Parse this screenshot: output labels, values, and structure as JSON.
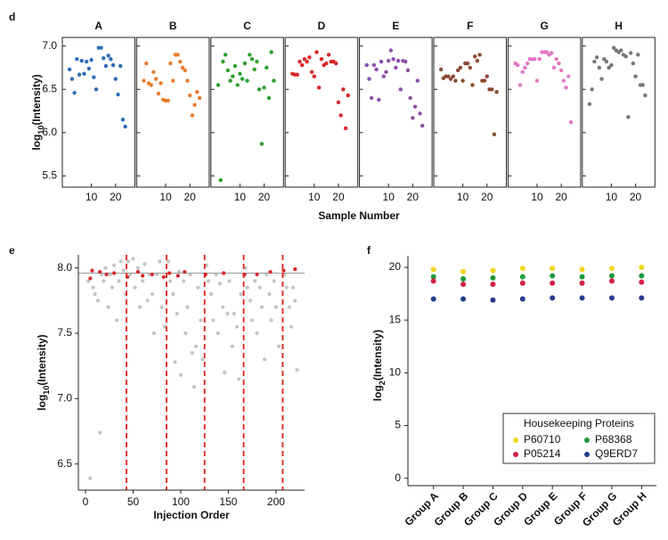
{
  "chart_data": [
    {
      "type": "scatter-grid",
      "panel_label": "d",
      "ylabel": [
        {
          "text": "log"
        },
        {
          "text": "10",
          "sub": true
        },
        {
          "text": "(Intensity)"
        }
      ],
      "xlabel": "Sample Number",
      "xlim": [
        -2,
        28
      ],
      "xticks": [
        10,
        20
      ],
      "ylim": [
        5.37,
        7.1
      ],
      "yticks": [
        {
          "value": 5.5,
          "label": "5.5"
        },
        {
          "value": 6,
          "label": "6.0"
        },
        {
          "value": 6.5,
          "label": "6.5"
        },
        {
          "value": 7,
          "label": "7.0"
        }
      ],
      "x": [
        1,
        2,
        3,
        4,
        5,
        6,
        7,
        8,
        9,
        10,
        11,
        12,
        13,
        14,
        15,
        16,
        17,
        18,
        19,
        20,
        21,
        22,
        23,
        24
      ],
      "panels": [
        {
          "title": "A",
          "color": "#2f6db5",
          "values": [
            6.73,
            6.62,
            6.46,
            6.85,
            6.67,
            6.83,
            6.68,
            6.82,
            6.74,
            6.84,
            6.64,
            6.5,
            6.98,
            6.98,
            6.86,
            6.77,
            6.89,
            6.85,
            6.78,
            6.62,
            6.44,
            6.77,
            6.15,
            6.07
          ]
        },
        {
          "title": "B",
          "color": "#e87c2e",
          "values": [
            6.6,
            6.8,
            6.57,
            6.55,
            6.7,
            6.62,
            6.45,
            6.57,
            6.38,
            6.37,
            6.37,
            6.8,
            6.6,
            6.9,
            6.9,
            6.82,
            6.75,
            6.72,
            6.6,
            6.43,
            6.2,
            6.32,
            6.47,
            6.4
          ]
        },
        {
          "title": "C",
          "color": "#2ca02c",
          "values": [
            6.55,
            5.45,
            6.82,
            6.9,
            6.72,
            6.6,
            6.65,
            6.77,
            6.55,
            6.68,
            6.62,
            6.8,
            6.6,
            6.9,
            6.85,
            6.73,
            6.82,
            6.5,
            5.87,
            6.52,
            6.75,
            6.4,
            6.93,
            6.6
          ]
        },
        {
          "title": "D",
          "color": "#d62728",
          "values": [
            6.68,
            6.67,
            6.67,
            6.82,
            6.78,
            6.85,
            6.82,
            6.87,
            6.7,
            6.65,
            6.93,
            6.52,
            6.85,
            6.78,
            6.8,
            6.9,
            6.82,
            6.82,
            6.8,
            6.35,
            6.2,
            6.5,
            6.05,
            6.43
          ]
        },
        {
          "title": "E",
          "color": "#8e4fa6",
          "values": [
            6.78,
            6.62,
            6.4,
            6.78,
            6.73,
            6.38,
            6.82,
            6.65,
            6.7,
            6.83,
            6.95,
            6.85,
            6.75,
            6.83,
            6.5,
            6.83,
            6.82,
            6.72,
            6.4,
            6.17,
            6.3,
            6.6,
            6.22,
            6.08
          ]
        },
        {
          "title": "F",
          "color": "#8c4a32",
          "values": [
            6.73,
            6.63,
            6.65,
            6.65,
            6.62,
            6.65,
            6.6,
            6.72,
            6.75,
            6.6,
            6.8,
            6.8,
            6.75,
            6.55,
            6.88,
            6.83,
            6.9,
            6.6,
            6.6,
            6.65,
            6.5,
            6.5,
            5.98,
            6.47
          ]
        },
        {
          "title": "G",
          "color": "#e377c2",
          "values": [
            6.8,
            6.78,
            6.55,
            6.7,
            6.75,
            6.8,
            6.85,
            6.85,
            6.85,
            6.6,
            6.85,
            6.93,
            6.93,
            6.93,
            6.9,
            6.92,
            6.75,
            6.85,
            6.8,
            6.72,
            6.6,
            6.52,
            6.65,
            6.12
          ]
        },
        {
          "title": "H",
          "color": "#777777",
          "values": [
            6.33,
            6.5,
            6.82,
            6.87,
            6.75,
            6.62,
            6.85,
            6.82,
            6.75,
            6.78,
            6.98,
            6.95,
            6.93,
            6.95,
            6.9,
            6.88,
            6.18,
            6.92,
            6.8,
            6.65,
            6.9,
            6.55,
            6.55,
            6.43
          ]
        }
      ]
    },
    {
      "type": "scatter",
      "panel_label": "e",
      "ylabel": [
        {
          "text": "log"
        },
        {
          "text": "10",
          "sub": true
        },
        {
          "text": "(Intensity)"
        }
      ],
      "xlabel": "Injection Order",
      "xlim": [
        -7.5,
        230
      ],
      "xticks": [
        0,
        50,
        100,
        150,
        200
      ],
      "ylim": [
        6.3,
        8.1
      ],
      "yticks": [
        {
          "value": 6.5,
          "label": "6.5"
        },
        {
          "value": 7,
          "label": "7.0"
        },
        {
          "value": 7.5,
          "label": "7.5"
        },
        {
          "value": 8,
          "label": "8.0"
        }
      ],
      "hline": 7.96,
      "hline_color": "#999999",
      "vlines": [
        43,
        85,
        125,
        166,
        207
      ],
      "vline_color": "#e0201b",
      "series": [
        {
          "color": "#c4c4c4",
          "x": [
            3,
            5,
            8,
            10,
            13,
            15,
            17,
            19,
            21,
            24,
            26,
            28,
            30,
            33,
            35,
            37,
            40,
            42,
            45,
            47,
            50,
            52,
            55,
            57,
            60,
            62,
            65,
            67,
            70,
            72,
            75,
            78,
            80,
            83,
            87,
            89,
            92,
            94,
            96,
            98,
            100,
            103,
            105,
            107,
            110,
            112,
            114,
            116,
            118,
            121,
            123,
            127,
            129,
            132,
            134,
            137,
            139,
            141,
            144,
            146,
            149,
            151,
            154,
            156,
            159,
            161,
            163,
            168,
            170,
            173,
            175,
            178,
            180,
            183,
            185,
            188,
            190,
            193,
            195,
            198,
            200,
            203,
            209,
            211,
            214,
            216,
            218,
            220,
            222
          ],
          "values": [
            7.9,
            6.39,
            7.85,
            7.8,
            7.75,
            6.74,
            7.95,
            7.9,
            8.0,
            7.7,
            7.95,
            7.85,
            8.02,
            7.6,
            7.9,
            8.05,
            7.98,
            7.8,
            8.05,
            7.95,
            8.07,
            7.85,
            8.0,
            7.7,
            7.9,
            8.03,
            7.75,
            7.95,
            7.8,
            7.5,
            7.95,
            8.05,
            7.7,
            7.55,
            8.05,
            7.9,
            7.8,
            7.28,
            7.65,
            7.97,
            7.18,
            7.9,
            7.5,
            7.7,
            7.95,
            7.35,
            7.09,
            7.4,
            7.85,
            7.6,
            7.3,
            8.02,
            7.9,
            7.8,
            7.6,
            7.95,
            7.5,
            7.88,
            7.7,
            7.2,
            7.65,
            7.9,
            7.4,
            7.65,
            7.55,
            7.15,
            7.8,
            8.0,
            7.85,
            7.75,
            7.6,
            7.9,
            7.5,
            7.85,
            7.7,
            7.3,
            7.95,
            7.8,
            7.6,
            7.9,
            7.7,
            7.4,
            7.95,
            7.85,
            7.7,
            7.55,
            7.85,
            7.75,
            7.22
          ]
        },
        {
          "color": "#d62728",
          "x": [
            5,
            7,
            15,
            22,
            30,
            44,
            55,
            60,
            70,
            82,
            88,
            97,
            104,
            126,
            145,
            167,
            180,
            194,
            208,
            220
          ],
          "values": [
            7.92,
            7.98,
            7.97,
            7.95,
            7.96,
            7.93,
            7.97,
            7.94,
            7.95,
            7.93,
            7.96,
            7.94,
            7.97,
            7.95,
            7.96,
            7.95,
            7.95,
            7.97,
            7.98,
            7.99
          ]
        }
      ]
    },
    {
      "type": "dot",
      "panel_label": "f",
      "ylabel": [
        {
          "text": "log"
        },
        {
          "text": "2",
          "sub": true
        },
        {
          "text": "(Intensity)"
        }
      ],
      "categories": [
        "Group A",
        "Group B",
        "Group C",
        "Group D",
        "Group E",
        "Group F",
        "Group G",
        "Group H"
      ],
      "ylim": [
        -0.7,
        21.1
      ],
      "yticks": [
        0,
        5,
        10,
        15,
        20
      ],
      "legend_title": "Housekeeping Proteins",
      "series": [
        {
          "name": "P60710",
          "color": "#f2d61b",
          "values": [
            19.8,
            19.6,
            19.7,
            19.9,
            19.9,
            19.8,
            19.9,
            20.0
          ]
        },
        {
          "name": "P68368",
          "color": "#1f9a3a",
          "values": [
            19.1,
            18.9,
            19.0,
            19.1,
            19.2,
            19.1,
            19.2,
            19.2
          ]
        },
        {
          "name": "P05214",
          "color": "#d61f45",
          "values": [
            18.7,
            18.4,
            18.4,
            18.5,
            18.5,
            18.5,
            18.7,
            18.6
          ]
        },
        {
          "name": "Q9ERD7",
          "color": "#263c8c",
          "values": [
            17.0,
            17.0,
            16.9,
            17.0,
            17.1,
            17.1,
            17.1,
            17.1
          ]
        }
      ]
    }
  ]
}
